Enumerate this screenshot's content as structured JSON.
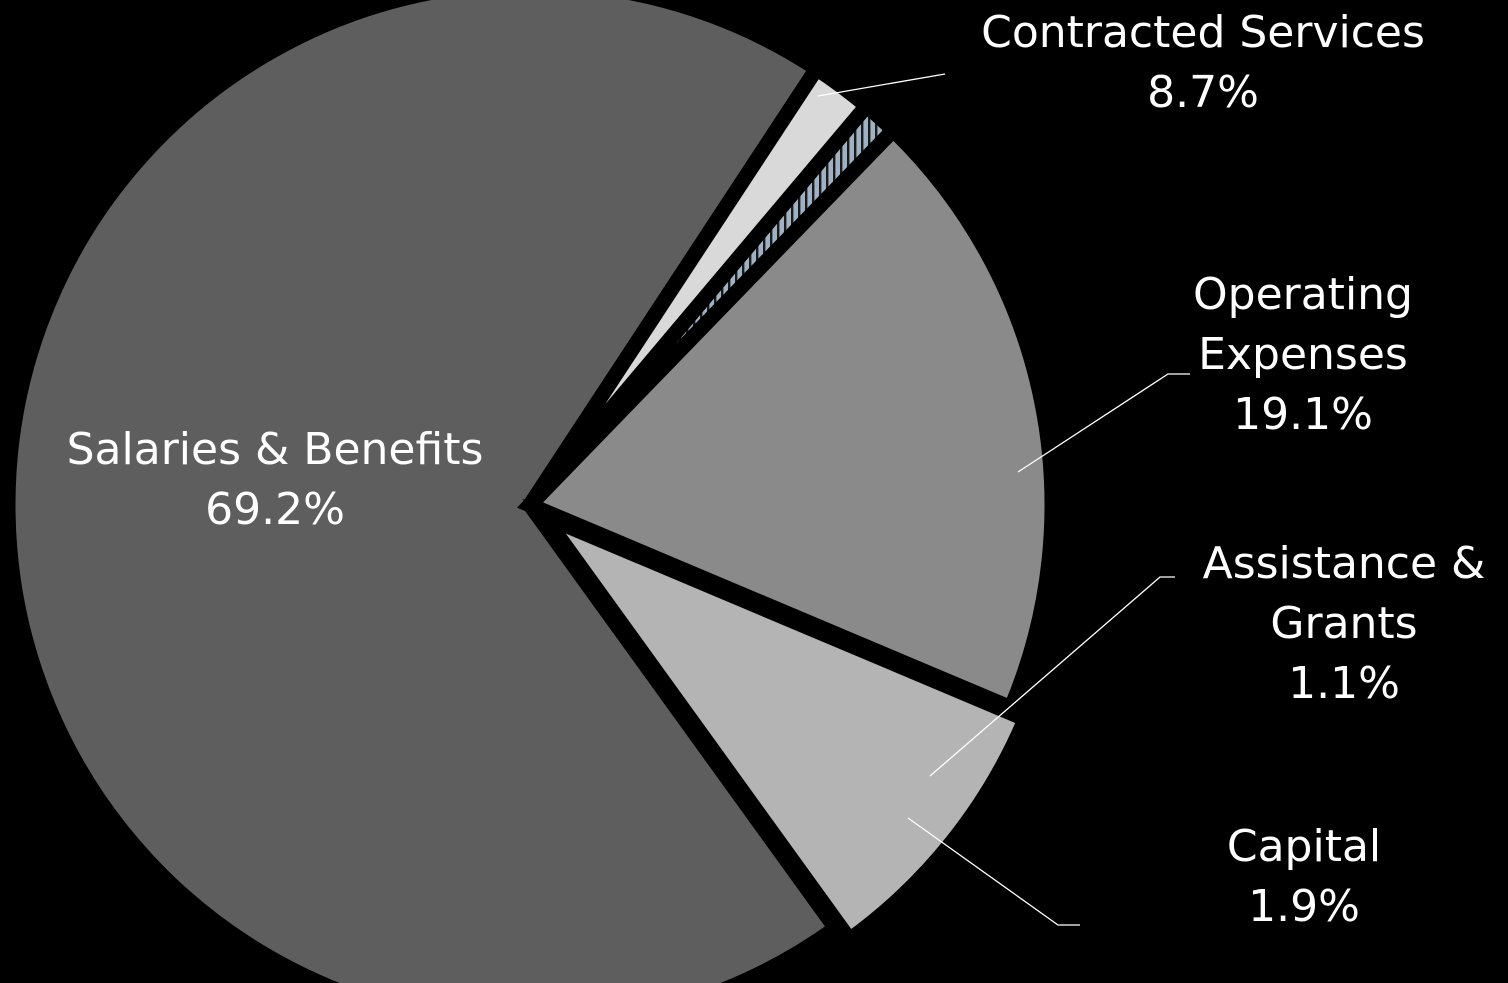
{
  "chart_data": {
    "type": "pie",
    "title": "",
    "start_angle_deg": 56.7,
    "direction": "counterclockwise",
    "slices": [
      {
        "key": "salaries",
        "label_lines": [
          "Salaries & Benefits"
        ],
        "value": 69.2,
        "value_text": "69.2%",
        "color": "#5e5e5e",
        "pattern": "none"
      },
      {
        "key": "contracted",
        "label_lines": [
          "Contracted Services"
        ],
        "value": 8.7,
        "value_text": "8.7%",
        "color": "#b4b4b4",
        "pattern": "none"
      },
      {
        "key": "operating",
        "label_lines": [
          "Operating",
          "Expenses"
        ],
        "value": 19.1,
        "value_text": "19.1%",
        "color": "#8a8a8a",
        "pattern": "none"
      },
      {
        "key": "assistance",
        "label_lines": [
          "Assistance &",
          "Grants"
        ],
        "value": 1.1,
        "value_text": "1.1%",
        "color": "#9fb1c2",
        "pattern": "vertical-stripes"
      },
      {
        "key": "capital",
        "label_lines": [
          "Capital"
        ],
        "value": 1.9,
        "value_text": "1.9%",
        "color": "#d9d9d9",
        "pattern": "none"
      }
    ],
    "background": "#000000",
    "label_color": "#ffffff",
    "legend": "none"
  }
}
